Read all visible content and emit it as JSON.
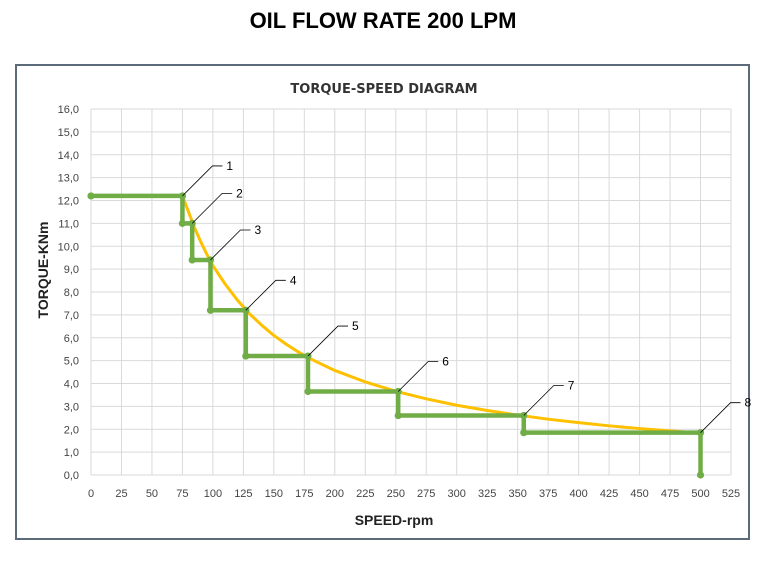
{
  "page": {
    "title": "OIL FLOW RATE 200 LPM"
  },
  "chart_data": {
    "type": "line",
    "title": "TORQUE-SPEED DIAGRAM",
    "xlabel": "SPEED-rpm",
    "ylabel": "TORQUE-KNm",
    "xlim": [
      0,
      525
    ],
    "ylim": [
      0,
      16
    ],
    "x_ticks": [
      "0",
      "25",
      "50",
      "75",
      "100",
      "125",
      "150",
      "175",
      "200",
      "225",
      "250",
      "275",
      "300",
      "325",
      "350",
      "375",
      "400",
      "425",
      "450",
      "475",
      "500",
      "525"
    ],
    "y_ticks": [
      "0,0",
      "1,0",
      "2,0",
      "3,0",
      "4,0",
      "5,0",
      "6,0",
      "7,0",
      "8,0",
      "9,0",
      "10,0",
      "11,0",
      "12,0",
      "13,0",
      "14,0",
      "15,0",
      "16,0"
    ],
    "grid": true,
    "series": [
      {
        "type": "curve",
        "color": "#FFC000",
        "x": [
          75,
          80,
          85,
          90,
          95,
          100,
          110,
          120,
          130,
          140,
          150,
          160,
          170,
          180,
          200,
          225,
          250,
          275,
          300,
          325,
          350,
          375,
          400,
          425,
          450,
          475,
          500
        ],
        "y": [
          12.2,
          11.5,
          10.8,
          10.2,
          9.65,
          9.15,
          8.35,
          7.65,
          7.05,
          6.55,
          6.1,
          5.72,
          5.38,
          5.08,
          4.57,
          4.07,
          3.66,
          3.33,
          3.05,
          2.82,
          2.62,
          2.44,
          2.29,
          2.15,
          2.03,
          1.93,
          1.83
        ]
      },
      {
        "type": "step",
        "color": "#70AD47",
        "x": [
          0,
          75,
          75,
          83,
          83,
          98,
          98,
          127,
          127,
          178,
          178,
          252,
          252,
          355,
          355,
          500,
          500
        ],
        "y": [
          12.2,
          12.2,
          11.0,
          11.0,
          9.4,
          9.4,
          7.2,
          7.2,
          5.2,
          5.2,
          3.65,
          3.65,
          2.6,
          2.6,
          1.85,
          1.85,
          0.0
        ]
      }
    ],
    "annotations": [
      {
        "label": "1",
        "x": 75,
        "y": 12.2
      },
      {
        "label": "2",
        "x": 83,
        "y": 11.0
      },
      {
        "label": "3",
        "x": 98,
        "y": 9.4
      },
      {
        "label": "4",
        "x": 127,
        "y": 7.2
      },
      {
        "label": "5",
        "x": 178,
        "y": 5.2
      },
      {
        "label": "6",
        "x": 252,
        "y": 3.65
      },
      {
        "label": "7",
        "x": 355,
        "y": 2.6
      },
      {
        "label": "8",
        "x": 500,
        "y": 1.85
      }
    ]
  }
}
